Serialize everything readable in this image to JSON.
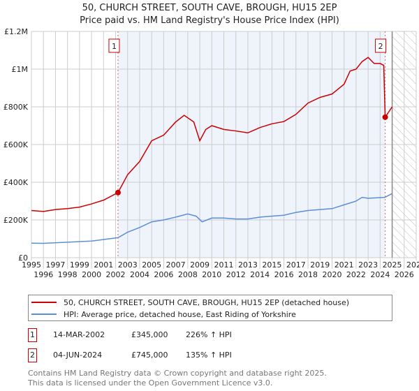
{
  "title": "50, CHURCH STREET, SOUTH CAVE, BROUGH, HU15 2EP",
  "subtitle": "Price paid vs. HM Land Registry's House Price Index (HPI)",
  "chart_data": {
    "type": "line",
    "xlim": [
      1995,
      2027
    ],
    "ylim": [
      0,
      1200000
    ],
    "x_ticks": [
      "1995",
      "1996",
      "1997",
      "1998",
      "1999",
      "2000",
      "2001",
      "2002",
      "2003",
      "2004",
      "2005",
      "2006",
      "2007",
      "2008",
      "2009",
      "2010",
      "2011",
      "2012",
      "2013",
      "2014",
      "2015",
      "2016",
      "2017",
      "2018",
      "2019",
      "2020",
      "2021",
      "2022",
      "2023",
      "2024",
      "2025",
      "2026",
      "2027"
    ],
    "y_ticks": [
      {
        "v": 0,
        "label": "£0"
      },
      {
        "v": 200000,
        "label": "£200K"
      },
      {
        "v": 400000,
        "label": "£400K"
      },
      {
        "v": 600000,
        "label": "£600K"
      },
      {
        "v": 800000,
        "label": "£800K"
      },
      {
        "v": 1000000,
        "label": "£1M"
      },
      {
        "v": 1200000,
        "label": "£1.2M"
      }
    ],
    "grid": true,
    "forecast_from": 2025,
    "series": [
      {
        "name": "50, CHURCH STREET, SOUTH CAVE, BROUGH, HU15 2EP (detached house)",
        "color": "#cc0000",
        "points": [
          [
            1995,
            250000
          ],
          [
            1996,
            245000
          ],
          [
            1997,
            255000
          ],
          [
            1998,
            260000
          ],
          [
            1999,
            268000
          ],
          [
            2000,
            285000
          ],
          [
            2001,
            305000
          ],
          [
            2002.2,
            345000
          ],
          [
            2003,
            440000
          ],
          [
            2004,
            510000
          ],
          [
            2005,
            620000
          ],
          [
            2006,
            650000
          ],
          [
            2007,
            720000
          ],
          [
            2007.7,
            755000
          ],
          [
            2008.5,
            720000
          ],
          [
            2009,
            620000
          ],
          [
            2009.5,
            680000
          ],
          [
            2010,
            700000
          ],
          [
            2011,
            680000
          ],
          [
            2012,
            672000
          ],
          [
            2013,
            662000
          ],
          [
            2014,
            690000
          ],
          [
            2015,
            710000
          ],
          [
            2016,
            722000
          ],
          [
            2017,
            760000
          ],
          [
            2018,
            820000
          ],
          [
            2019,
            850000
          ],
          [
            2020,
            868000
          ],
          [
            2021,
            920000
          ],
          [
            2021.5,
            990000
          ],
          [
            2022,
            1000000
          ],
          [
            2022.5,
            1040000
          ],
          [
            2023,
            1062000
          ],
          [
            2023.5,
            1030000
          ],
          [
            2024,
            1030000
          ],
          [
            2024.3,
            1020000
          ],
          [
            2024.42,
            745000
          ],
          [
            2025,
            800000
          ]
        ]
      },
      {
        "name": "HPI: Average price, detached house, East Riding of Yorkshire",
        "color": "#5b8fd6",
        "points": [
          [
            1995,
            77000
          ],
          [
            1996,
            76000
          ],
          [
            1998,
            82000
          ],
          [
            2000,
            88000
          ],
          [
            2002.2,
            106000
          ],
          [
            2003,
            135000
          ],
          [
            2004,
            160000
          ],
          [
            2005,
            190000
          ],
          [
            2006,
            200000
          ],
          [
            2007,
            215000
          ],
          [
            2008,
            232000
          ],
          [
            2008.7,
            220000
          ],
          [
            2009.2,
            190000
          ],
          [
            2010,
            210000
          ],
          [
            2011,
            210000
          ],
          [
            2012,
            205000
          ],
          [
            2013,
            205000
          ],
          [
            2014,
            215000
          ],
          [
            2016,
            225000
          ],
          [
            2017,
            240000
          ],
          [
            2018,
            250000
          ],
          [
            2019,
            255000
          ],
          [
            2020,
            260000
          ],
          [
            2021,
            280000
          ],
          [
            2022,
            300000
          ],
          [
            2022.5,
            320000
          ],
          [
            2023,
            315000
          ],
          [
            2024.4,
            320000
          ],
          [
            2025,
            340000
          ]
        ]
      }
    ],
    "sales": [
      {
        "id": "1",
        "x": 2002.2,
        "y": 345000
      },
      {
        "id": "2",
        "x": 2024.42,
        "y": 745000
      }
    ]
  },
  "legend": {
    "red": "50, CHURCH STREET, SOUTH CAVE, BROUGH, HU15 2EP (detached house)",
    "blue": "HPI: Average price, detached house, East Riding of Yorkshire"
  },
  "table": [
    {
      "id": "1",
      "date": "14-MAR-2002",
      "price": "£345,000",
      "hpi": "226% ↑ HPI"
    },
    {
      "id": "2",
      "date": "04-JUN-2024",
      "price": "£745,000",
      "hpi": "135% ↑ HPI"
    }
  ],
  "footer": [
    "Contains HM Land Registry data © Crown copyright and database right 2025.",
    "This data is licensed under the Open Government Licence v3.0."
  ]
}
